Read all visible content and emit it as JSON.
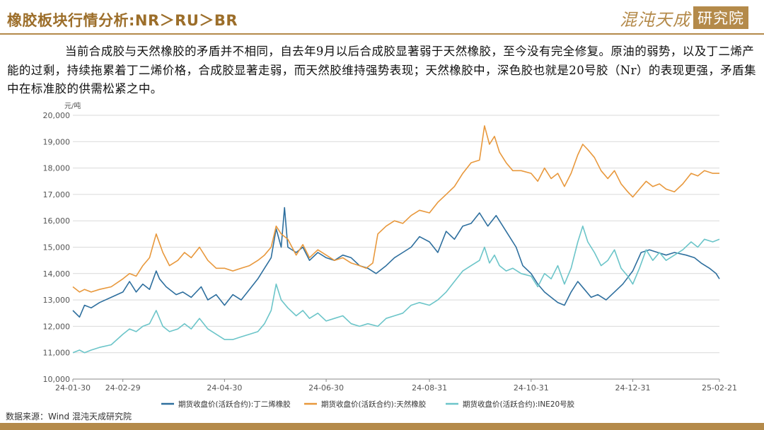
{
  "header": {
    "title": "橡胶板块行情分析:NR＞RU＞BR",
    "brand_main": "混沌天成",
    "brand_box": "研究院"
  },
  "paragraph": "当前合成胶与天然橡胶的矛盾并不相同，自去年9月以后合成胶显著弱于天然橡胶，至今没有完全修复。原油的弱势，以及丁二烯产能的过剩，持续拖累着丁二烯价格，合成胶显著走弱，而天然胶维持强势表现；天然橡胶中，深色胶也就是20号胶（Nr）的表现更强，矛盾集中在标准胶的供需松紧之中。",
  "source": "数据来源：Wind 混沌天成研究院",
  "colors": {
    "gold": "#b48a4a",
    "series_br": "#2e6f9e",
    "series_ru": "#e8983c",
    "series_nr": "#6cc5c9",
    "grid": "#d9d9d9",
    "axis_text": "#555555"
  },
  "chart_data": {
    "type": "line",
    "ylabel": "元/吨",
    "ylim": [
      10000,
      20000
    ],
    "yticks": [
      "10,000",
      "11,000",
      "12,000",
      "13,000",
      "14,000",
      "15,000",
      "16,000",
      "17,000",
      "18,000",
      "19,000",
      "20,000"
    ],
    "xlim": [
      "2024-01-30",
      "2025-02-21"
    ],
    "xticks": [
      "24-01-30",
      "24-02-29",
      "24-04-30",
      "24-06-30",
      "24-08-31",
      "24-10-31",
      "24-12-31",
      "25-02-21"
    ],
    "legend_position": "bottom",
    "grid": "horizontal",
    "series": [
      {
        "name": "期货收盘价(活跃合约):丁二烯橡胶",
        "color": "#2e6f9e",
        "points": [
          [
            "2024-01-30",
            12600
          ],
          [
            "2024-02-03",
            12350
          ],
          [
            "2024-02-06",
            12800
          ],
          [
            "2024-02-10",
            12700
          ],
          [
            "2024-02-15",
            12900
          ],
          [
            "2024-02-22",
            13100
          ],
          [
            "2024-02-29",
            13300
          ],
          [
            "2024-03-04",
            13700
          ],
          [
            "2024-03-08",
            13300
          ],
          [
            "2024-03-12",
            13600
          ],
          [
            "2024-03-16",
            13400
          ],
          [
            "2024-03-20",
            14100
          ],
          [
            "2024-03-22",
            13800
          ],
          [
            "2024-03-26",
            13500
          ],
          [
            "2024-04-01",
            13200
          ],
          [
            "2024-04-05",
            13300
          ],
          [
            "2024-04-10",
            13100
          ],
          [
            "2024-04-16",
            13500
          ],
          [
            "2024-04-20",
            13000
          ],
          [
            "2024-04-25",
            13200
          ],
          [
            "2024-04-30",
            12800
          ],
          [
            "2024-05-05",
            13200
          ],
          [
            "2024-05-10",
            13000
          ],
          [
            "2024-05-15",
            13400
          ],
          [
            "2024-05-20",
            13800
          ],
          [
            "2024-05-24",
            14200
          ],
          [
            "2024-05-28",
            14600
          ],
          [
            "2024-05-31",
            15700
          ],
          [
            "2024-06-03",
            15000
          ],
          [
            "2024-06-05",
            16500
          ],
          [
            "2024-06-07",
            15000
          ],
          [
            "2024-06-12",
            14800
          ],
          [
            "2024-06-16",
            15000
          ],
          [
            "2024-06-20",
            14500
          ],
          [
            "2024-06-25",
            14800
          ],
          [
            "2024-06-30",
            14600
          ],
          [
            "2024-07-05",
            14500
          ],
          [
            "2024-07-10",
            14700
          ],
          [
            "2024-07-15",
            14600
          ],
          [
            "2024-07-20",
            14300
          ],
          [
            "2024-07-25",
            14200
          ],
          [
            "2024-07-30",
            14000
          ],
          [
            "2024-08-05",
            14300
          ],
          [
            "2024-08-10",
            14600
          ],
          [
            "2024-08-15",
            14800
          ],
          [
            "2024-08-20",
            15000
          ],
          [
            "2024-08-25",
            15400
          ],
          [
            "2024-08-31",
            15200
          ],
          [
            "2024-09-05",
            14800
          ],
          [
            "2024-09-10",
            15600
          ],
          [
            "2024-09-15",
            15300
          ],
          [
            "2024-09-20",
            15800
          ],
          [
            "2024-09-25",
            15900
          ],
          [
            "2024-09-30",
            16300
          ],
          [
            "2024-10-05",
            15800
          ],
          [
            "2024-10-10",
            16200
          ],
          [
            "2024-10-14",
            15800
          ],
          [
            "2024-10-18",
            15400
          ],
          [
            "2024-10-22",
            15000
          ],
          [
            "2024-10-26",
            14300
          ],
          [
            "2024-10-31",
            14000
          ],
          [
            "2024-11-04",
            13600
          ],
          [
            "2024-11-08",
            13300
          ],
          [
            "2024-11-12",
            13100
          ],
          [
            "2024-11-16",
            12900
          ],
          [
            "2024-11-20",
            12800
          ],
          [
            "2024-11-24",
            13300
          ],
          [
            "2024-11-28",
            13700
          ],
          [
            "2024-12-02",
            13400
          ],
          [
            "2024-12-06",
            13100
          ],
          [
            "2024-12-10",
            13200
          ],
          [
            "2024-12-15",
            13000
          ],
          [
            "2024-12-20",
            13300
          ],
          [
            "2024-12-25",
            13600
          ],
          [
            "2024-12-31",
            14100
          ],
          [
            "2025-01-05",
            14800
          ],
          [
            "2025-01-10",
            14900
          ],
          [
            "2025-01-15",
            14800
          ],
          [
            "2025-01-20",
            14700
          ],
          [
            "2025-01-25",
            14800
          ],
          [
            "2025-02-01",
            14700
          ],
          [
            "2025-02-06",
            14600
          ],
          [
            "2025-02-10",
            14400
          ],
          [
            "2025-02-15",
            14200
          ],
          [
            "2025-02-19",
            14000
          ],
          [
            "2025-02-21",
            13800
          ]
        ]
      },
      {
        "name": "期货收盘价(活跃合约):天然橡胶",
        "color": "#e8983c",
        "points": [
          [
            "2024-01-30",
            13500
          ],
          [
            "2024-02-03",
            13300
          ],
          [
            "2024-02-06",
            13400
          ],
          [
            "2024-02-10",
            13300
          ],
          [
            "2024-02-15",
            13400
          ],
          [
            "2024-02-22",
            13500
          ],
          [
            "2024-02-29",
            13800
          ],
          [
            "2024-03-04",
            14000
          ],
          [
            "2024-03-08",
            13900
          ],
          [
            "2024-03-12",
            14300
          ],
          [
            "2024-03-16",
            14600
          ],
          [
            "2024-03-20",
            15500
          ],
          [
            "2024-03-24",
            14800
          ],
          [
            "2024-03-28",
            14300
          ],
          [
            "2024-04-02",
            14500
          ],
          [
            "2024-04-06",
            14800
          ],
          [
            "2024-04-10",
            14600
          ],
          [
            "2024-04-15",
            15000
          ],
          [
            "2024-04-20",
            14500
          ],
          [
            "2024-04-25",
            14200
          ],
          [
            "2024-04-30",
            14200
          ],
          [
            "2024-05-05",
            14100
          ],
          [
            "2024-05-10",
            14200
          ],
          [
            "2024-05-15",
            14300
          ],
          [
            "2024-05-20",
            14500
          ],
          [
            "2024-05-24",
            14700
          ],
          [
            "2024-05-28",
            15000
          ],
          [
            "2024-05-31",
            15800
          ],
          [
            "2024-06-03",
            15500
          ],
          [
            "2024-06-07",
            15300
          ],
          [
            "2024-06-12",
            14700
          ],
          [
            "2024-06-16",
            15100
          ],
          [
            "2024-06-20",
            14600
          ],
          [
            "2024-06-25",
            14900
          ],
          [
            "2024-06-30",
            14700
          ],
          [
            "2024-07-05",
            14500
          ],
          [
            "2024-07-10",
            14600
          ],
          [
            "2024-07-15",
            14400
          ],
          [
            "2024-07-20",
            14300
          ],
          [
            "2024-07-24",
            14200
          ],
          [
            "2024-07-28",
            14400
          ],
          [
            "2024-07-31",
            15500
          ],
          [
            "2024-08-05",
            15800
          ],
          [
            "2024-08-10",
            16000
          ],
          [
            "2024-08-15",
            15900
          ],
          [
            "2024-08-20",
            16200
          ],
          [
            "2024-08-25",
            16400
          ],
          [
            "2024-08-31",
            16300
          ],
          [
            "2024-09-05",
            16700
          ],
          [
            "2024-09-10",
            17000
          ],
          [
            "2024-09-15",
            17300
          ],
          [
            "2024-09-20",
            17800
          ],
          [
            "2024-09-25",
            18200
          ],
          [
            "2024-09-30",
            18300
          ],
          [
            "2024-10-03",
            19600
          ],
          [
            "2024-10-06",
            18900
          ],
          [
            "2024-10-09",
            19200
          ],
          [
            "2024-10-12",
            18600
          ],
          [
            "2024-10-16",
            18200
          ],
          [
            "2024-10-20",
            17900
          ],
          [
            "2024-10-25",
            17900
          ],
          [
            "2024-10-31",
            17800
          ],
          [
            "2024-11-04",
            17500
          ],
          [
            "2024-11-08",
            18000
          ],
          [
            "2024-11-12",
            17600
          ],
          [
            "2024-11-16",
            17800
          ],
          [
            "2024-11-20",
            17300
          ],
          [
            "2024-11-24",
            17800
          ],
          [
            "2024-11-28",
            18500
          ],
          [
            "2024-12-01",
            18900
          ],
          [
            "2024-12-04",
            18700
          ],
          [
            "2024-12-08",
            18400
          ],
          [
            "2024-12-12",
            17900
          ],
          [
            "2024-12-16",
            17600
          ],
          [
            "2024-12-20",
            17900
          ],
          [
            "2024-12-24",
            17400
          ],
          [
            "2024-12-28",
            17100
          ],
          [
            "2024-12-31",
            16900
          ],
          [
            "2025-01-04",
            17200
          ],
          [
            "2025-01-08",
            17500
          ],
          [
            "2025-01-12",
            17300
          ],
          [
            "2025-01-16",
            17400
          ],
          [
            "2025-01-20",
            17200
          ],
          [
            "2025-01-25",
            17100
          ],
          [
            "2025-01-30",
            17400
          ],
          [
            "2025-02-04",
            17800
          ],
          [
            "2025-02-08",
            17700
          ],
          [
            "2025-02-12",
            17900
          ],
          [
            "2025-02-17",
            17800
          ],
          [
            "2025-02-21",
            17800
          ]
        ]
      },
      {
        "name": "期货收盘价(活跃合约):INE20号胶",
        "color": "#6cc5c9",
        "points": [
          [
            "2024-01-30",
            11000
          ],
          [
            "2024-02-03",
            11100
          ],
          [
            "2024-02-06",
            11000
          ],
          [
            "2024-02-10",
            11100
          ],
          [
            "2024-02-15",
            11200
          ],
          [
            "2024-02-22",
            11300
          ],
          [
            "2024-02-29",
            11700
          ],
          [
            "2024-03-04",
            11900
          ],
          [
            "2024-03-08",
            11800
          ],
          [
            "2024-03-12",
            12000
          ],
          [
            "2024-03-16",
            12100
          ],
          [
            "2024-03-20",
            12600
          ],
          [
            "2024-03-24",
            12000
          ],
          [
            "2024-03-28",
            11800
          ],
          [
            "2024-04-02",
            11900
          ],
          [
            "2024-04-06",
            12100
          ],
          [
            "2024-04-10",
            11900
          ],
          [
            "2024-04-15",
            12300
          ],
          [
            "2024-04-20",
            11900
          ],
          [
            "2024-04-25",
            11700
          ],
          [
            "2024-04-30",
            11500
          ],
          [
            "2024-05-05",
            11500
          ],
          [
            "2024-05-10",
            11600
          ],
          [
            "2024-05-15",
            11700
          ],
          [
            "2024-05-20",
            11800
          ],
          [
            "2024-05-24",
            12100
          ],
          [
            "2024-05-28",
            12600
          ],
          [
            "2024-05-31",
            13600
          ],
          [
            "2024-06-03",
            13000
          ],
          [
            "2024-06-07",
            12700
          ],
          [
            "2024-06-12",
            12400
          ],
          [
            "2024-06-16",
            12600
          ],
          [
            "2024-06-20",
            12300
          ],
          [
            "2024-06-25",
            12500
          ],
          [
            "2024-06-30",
            12200
          ],
          [
            "2024-07-05",
            12300
          ],
          [
            "2024-07-10",
            12400
          ],
          [
            "2024-07-15",
            12100
          ],
          [
            "2024-07-20",
            12000
          ],
          [
            "2024-07-25",
            12100
          ],
          [
            "2024-07-31",
            12000
          ],
          [
            "2024-08-05",
            12300
          ],
          [
            "2024-08-10",
            12400
          ],
          [
            "2024-08-15",
            12500
          ],
          [
            "2024-08-20",
            12800
          ],
          [
            "2024-08-25",
            12900
          ],
          [
            "2024-08-31",
            12800
          ],
          [
            "2024-09-05",
            13000
          ],
          [
            "2024-09-10",
            13300
          ],
          [
            "2024-09-15",
            13700
          ],
          [
            "2024-09-20",
            14100
          ],
          [
            "2024-09-25",
            14300
          ],
          [
            "2024-09-30",
            14500
          ],
          [
            "2024-10-03",
            15000
          ],
          [
            "2024-10-06",
            14400
          ],
          [
            "2024-10-09",
            14700
          ],
          [
            "2024-10-12",
            14300
          ],
          [
            "2024-10-16",
            14100
          ],
          [
            "2024-10-20",
            14200
          ],
          [
            "2024-10-25",
            14000
          ],
          [
            "2024-10-31",
            13900
          ],
          [
            "2024-11-04",
            13500
          ],
          [
            "2024-11-08",
            14000
          ],
          [
            "2024-11-12",
            13800
          ],
          [
            "2024-11-16",
            14300
          ],
          [
            "2024-11-20",
            13600
          ],
          [
            "2024-11-24",
            14200
          ],
          [
            "2024-11-28",
            15200
          ],
          [
            "2024-12-01",
            15800
          ],
          [
            "2024-12-04",
            15200
          ],
          [
            "2024-12-08",
            14800
          ],
          [
            "2024-12-12",
            14300
          ],
          [
            "2024-12-16",
            14500
          ],
          [
            "2024-12-20",
            14900
          ],
          [
            "2024-12-24",
            14200
          ],
          [
            "2024-12-28",
            13900
          ],
          [
            "2024-12-31",
            13600
          ],
          [
            "2025-01-04",
            14200
          ],
          [
            "2025-01-08",
            14900
          ],
          [
            "2025-01-12",
            14500
          ],
          [
            "2025-01-16",
            14800
          ],
          [
            "2025-01-20",
            14500
          ],
          [
            "2025-01-25",
            14700
          ],
          [
            "2025-01-30",
            14900
          ],
          [
            "2025-02-04",
            15200
          ],
          [
            "2025-02-08",
            15000
          ],
          [
            "2025-02-12",
            15300
          ],
          [
            "2025-02-17",
            15200
          ],
          [
            "2025-02-21",
            15300
          ]
        ]
      }
    ]
  }
}
